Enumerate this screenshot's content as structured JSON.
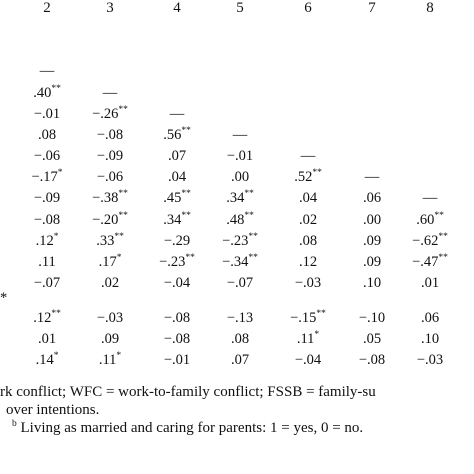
{
  "headers": [
    "2",
    "3",
    "4",
    "5",
    "6",
    "7",
    "8"
  ],
  "rows": [
    {
      "cells": [
        "",
        "",
        "",
        "",
        "",
        "",
        ""
      ]
    },
    {
      "cells": [
        "—",
        "",
        "",
        "",
        "",
        "",
        ""
      ]
    },
    {
      "cells": [
        ".40**",
        "—",
        "",
        "",
        "",
        "",
        ""
      ]
    },
    {
      "cells": [
        "−.01",
        "−.26**",
        "—",
        "",
        "",
        "",
        ""
      ]
    },
    {
      "cells": [
        ".08",
        "−.08",
        ".56**",
        "—",
        "",
        "",
        ""
      ]
    },
    {
      "cells": [
        "−.06",
        "−.09",
        ".07",
        "−.01",
        "—",
        "",
        ""
      ]
    },
    {
      "cells": [
        "−.17*",
        "−.06",
        ".04",
        ".00",
        ".52**",
        "—",
        ""
      ]
    },
    {
      "cells": [
        "−.09",
        "−.38**",
        ".45**",
        ".34**",
        ".04",
        ".06",
        "—"
      ]
    },
    {
      "cells": [
        "−.08",
        "−.20**",
        ".34**",
        ".48**",
        ".02",
        ".00",
        ".60**"
      ]
    },
    {
      "cells": [
        ".12*",
        ".33**",
        "−.29",
        "−.23**",
        ".08",
        ".09",
        "−.62**"
      ]
    },
    {
      "cells": [
        ".11",
        ".17*",
        "−.23**",
        "−.34**",
        ".12",
        ".09",
        "−.47**"
      ]
    },
    {
      "cells": [
        "−.07",
        ".02",
        "−.04",
        "−.07",
        "−.03",
        ".10",
        ".01"
      ]
    },
    {
      "cells": [
        ".12**",
        "−.03",
        "−.08",
        "−.13",
        "−.15**",
        "−.10",
        ".06"
      ]
    },
    {
      "cells": [
        ".01",
        ".09",
        "−.08",
        ".08",
        ".11*",
        ".05",
        ".10"
      ]
    },
    {
      "cells": [
        ".14*",
        ".11*",
        "−.01",
        ".07",
        "−.04",
        "−.08",
        "−.03"
      ]
    }
  ],
  "left_marks": {
    "row12": "*"
  },
  "notes": {
    "line1": "rk conflict; WFC = work-to-family conflict; FSSB = family-su",
    "line2": "over intentions.",
    "line3_sup": "b",
    "line3": " Living as married and caring for parents: 1 = yes, 0 = no."
  }
}
